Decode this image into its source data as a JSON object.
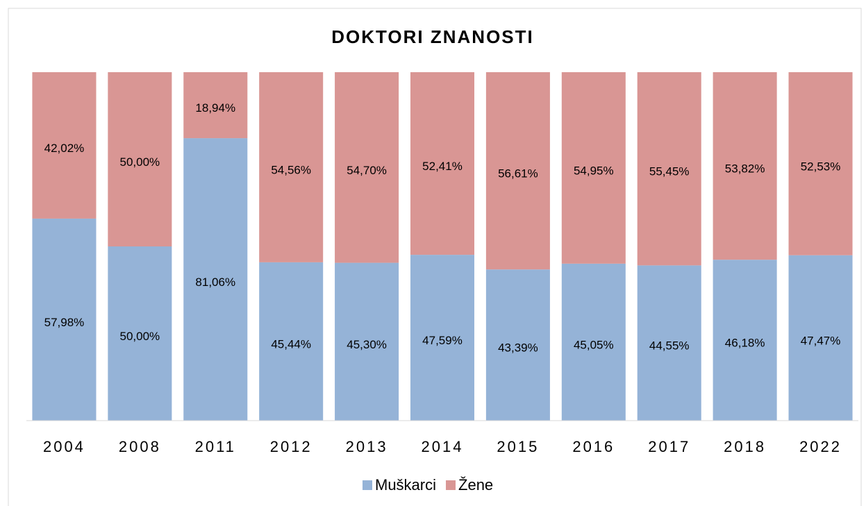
{
  "chart_data": {
    "type": "stacked_bar",
    "title": "DOKTORI ZNANOSTI",
    "categories": [
      "2004",
      "2008",
      "2011",
      "2012",
      "2013",
      "2014",
      "2015",
      "2016",
      "2017",
      "2018",
      "2022"
    ],
    "series": [
      {
        "name": "Muškarci",
        "color": "#95b3d7",
        "values": [
          57.98,
          50.0,
          81.06,
          45.44,
          45.3,
          47.59,
          43.39,
          45.05,
          44.55,
          46.18,
          47.47
        ],
        "value_labels": [
          "57,98%",
          "50,00%",
          "81,06%",
          "45,44%",
          "45,30%",
          "47,59%",
          "43,39%",
          "45,05%",
          "44,55%",
          "46,18%",
          "47,47%"
        ]
      },
      {
        "name": "Žene",
        "color": "#d99694",
        "values": [
          42.02,
          50.0,
          18.94,
          54.56,
          54.7,
          52.41,
          56.61,
          54.95,
          55.45,
          53.82,
          52.53
        ],
        "value_labels": [
          "42,02%",
          "50,00%",
          "18,94%",
          "54,56%",
          "54,70%",
          "52,41%",
          "56,61%",
          "54,95%",
          "55,45%",
          "53,82%",
          "52,53%"
        ]
      }
    ],
    "ylim": [
      0,
      100
    ],
    "legend": "bottom"
  }
}
